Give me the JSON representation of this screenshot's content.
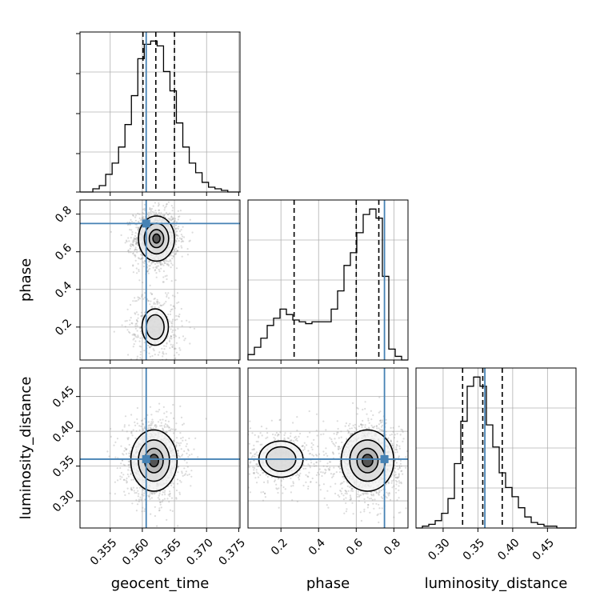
{
  "chart_data": {
    "type": "corner",
    "parameters": [
      "geocent_time",
      "phase",
      "luminosity_distance"
    ],
    "axis_labels": {
      "geocent_time": "geocent_time",
      "phase": "phase",
      "luminosity_distance": "luminosity_distance"
    },
    "ranges": {
      "geocent_time": [
        0.3503,
        0.3752
      ],
      "phase": [
        0.025,
        0.875
      ],
      "luminosity_distance": [
        0.261,
        0.491
      ]
    },
    "ticks": {
      "geocent_time": [
        0.355,
        0.36,
        0.365,
        0.37,
        0.375
      ],
      "phase": [
        0.2,
        0.4,
        0.6,
        0.8
      ],
      "luminosity_distance": [
        0.3,
        0.35,
        0.4,
        0.45
      ]
    },
    "tick_labels": {
      "geocent_time": [
        "0.355",
        "0.360",
        "0.365",
        "0.370",
        "0.375"
      ],
      "phase": [
        "0.2",
        "0.4",
        "0.6",
        "0.8"
      ],
      "luminosity_distance": [
        "0.30",
        "0.35",
        "0.40",
        "0.45"
      ]
    },
    "truths": {
      "geocent_time": 0.3606,
      "phase": 0.75,
      "luminosity_distance": 0.36
    },
    "quantiles": {
      "geocent_time": [
        0.3601,
        0.3621,
        0.365
      ],
      "phase": [
        0.27,
        0.6,
        0.72
      ],
      "luminosity_distance": [
        0.328,
        0.357,
        0.385
      ]
    },
    "histograms": {
      "geocent_time": {
        "edges": [
          0.3503,
          0.3513,
          0.3523,
          0.3533,
          0.3543,
          0.3553,
          0.3563,
          0.3573,
          0.3583,
          0.3593,
          0.3603,
          0.3613,
          0.3623,
          0.3633,
          0.3643,
          0.3653,
          0.3663,
          0.3673,
          0.3683,
          0.3693,
          0.3703,
          0.3713,
          0.3723,
          0.3733,
          0.3743,
          0.3753
        ],
        "counts": [
          0,
          0,
          2,
          4,
          11,
          18,
          28,
          42,
          60,
          83,
          92,
          94,
          91,
          75,
          63,
          43,
          28,
          18,
          12,
          6,
          3,
          2,
          1,
          0,
          0
        ]
      },
      "phase": {
        "edges": [
          0.025,
          0.059,
          0.093,
          0.127,
          0.161,
          0.195,
          0.229,
          0.263,
          0.297,
          0.331,
          0.365,
          0.399,
          0.433,
          0.467,
          0.501,
          0.535,
          0.569,
          0.603,
          0.637,
          0.671,
          0.705,
          0.739,
          0.773,
          0.807,
          0.841,
          0.875
        ],
        "counts": [
          3,
          7,
          12,
          19,
          23,
          28,
          25,
          22,
          21,
          20,
          21,
          21,
          21,
          28,
          38,
          52,
          59,
          70,
          80,
          83,
          78,
          46,
          6,
          2,
          0
        ]
      },
      "luminosity_distance": {
        "edges": [
          0.261,
          0.2702,
          0.2794,
          0.2886,
          0.2978,
          0.307,
          0.3162,
          0.3254,
          0.3346,
          0.3438,
          0.353,
          0.3622,
          0.3714,
          0.3806,
          0.3898,
          0.399,
          0.4082,
          0.4174,
          0.4266,
          0.4358,
          0.445,
          0.4542,
          0.4634,
          0.4726,
          0.4818,
          0.491
        ],
        "counts": [
          0,
          1,
          2,
          4,
          8,
          16,
          35,
          58,
          77,
          82,
          77,
          56,
          44,
          30,
          22,
          17,
          11,
          6,
          3,
          2,
          1,
          1,
          0,
          0,
          0
        ]
      }
    },
    "density_modes": {
      "geocent_time_vs_phase": [
        {
          "x": 0.3622,
          "y": 0.67,
          "weight": 1.0
        },
        {
          "x": 0.362,
          "y": 0.2,
          "weight": 0.3
        }
      ],
      "geocent_time_vs_luminosity_distance": [
        {
          "x": 0.3618,
          "y": 0.358,
          "weight": 1.0
        }
      ],
      "phase_vs_luminosity_distance": [
        {
          "x": 0.66,
          "y": 0.358,
          "weight": 1.0
        },
        {
          "x": 0.2,
          "y": 0.36,
          "weight": 0.35
        }
      ]
    },
    "grid": true,
    "colors": {
      "truth": "#4682b4",
      "lines": "#000000",
      "grid": "#b0b0b0",
      "scatter": "#9a9a9a"
    }
  }
}
